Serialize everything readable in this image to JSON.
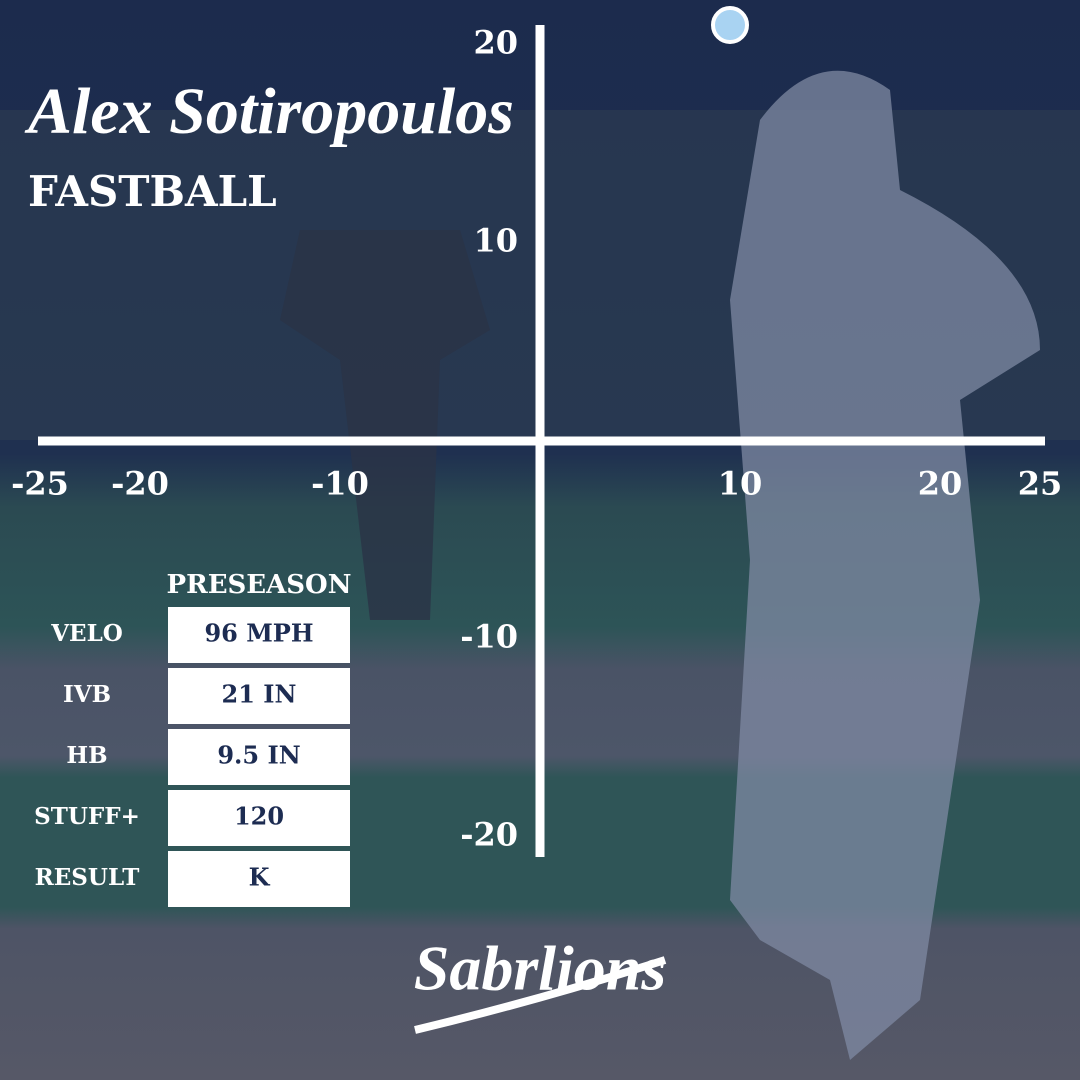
{
  "chart_data": {
    "type": "scatter",
    "title": "Alex Sotiropoulos",
    "subtitle": "FASTBALL",
    "x": [
      9.5
    ],
    "y": [
      21
    ],
    "color": "#a9d3f2",
    "xlim": [
      -25,
      25
    ],
    "ylim": [
      -21,
      21
    ],
    "xticks": [
      -25,
      -20,
      -10,
      10,
      20,
      25
    ],
    "yticks": [
      -20,
      -10,
      10,
      20
    ]
  },
  "table": {
    "header": "PRESEASON",
    "rows": [
      [
        "VELO",
        "96 MPH"
      ],
      [
        "IVB",
        "21 IN"
      ],
      [
        "HB",
        "9.5 IN"
      ],
      [
        "STUFF+",
        "120"
      ],
      [
        "RESULT",
        "K"
      ]
    ]
  },
  "brand": "Sabrlions"
}
